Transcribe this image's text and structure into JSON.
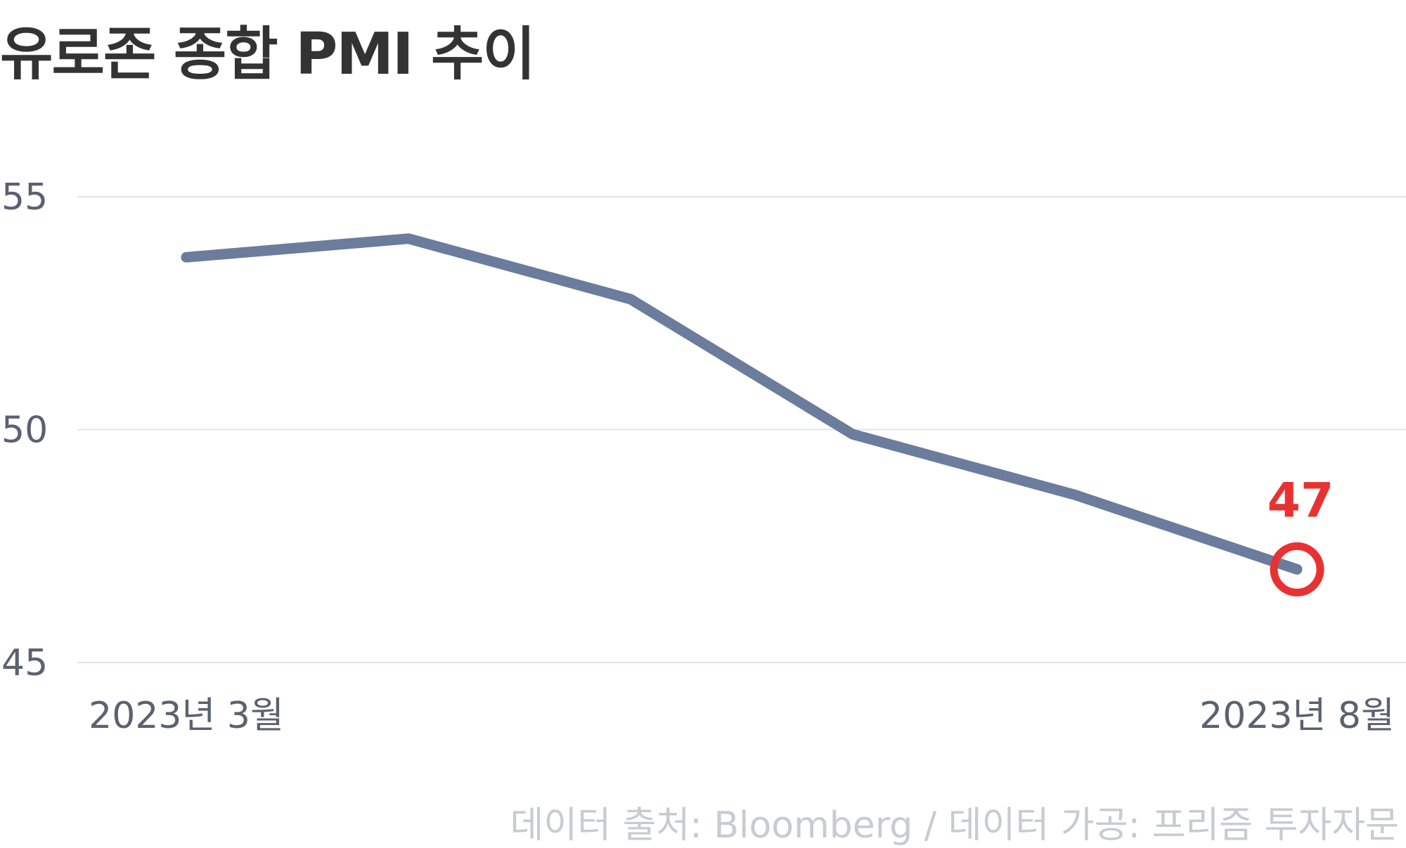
{
  "title": "유로존 종합 PMI 추이",
  "source": "데이터 출처: Bloomberg / 데이터 가공: 프리즘 투자자문",
  "colors": {
    "line": "#6b7c9c",
    "highlight": "#e83232",
    "grid": "#e3e4e8",
    "title": "#333333",
    "tick": "#5b6170",
    "source": "#c9cbd2"
  },
  "chart_data": {
    "type": "line",
    "title": "유로존 종합 PMI 추이",
    "x": [
      "2023-03",
      "2023-04",
      "2023-05",
      "2023-06",
      "2023-07",
      "2023-08"
    ],
    "x_tick_labels": [
      {
        "index": 0,
        "label": "2023년 3월"
      },
      {
        "index": 5,
        "label": "2023년 8월"
      }
    ],
    "series": [
      {
        "values": [
          53.7,
          54.1,
          52.8,
          49.9,
          48.6,
          47.0
        ]
      }
    ],
    "y_ticks": [
      "55",
      "50",
      "45"
    ],
    "ylim": [
      45,
      55
    ],
    "grid": true,
    "highlight": {
      "index": 5,
      "label": "47"
    }
  }
}
